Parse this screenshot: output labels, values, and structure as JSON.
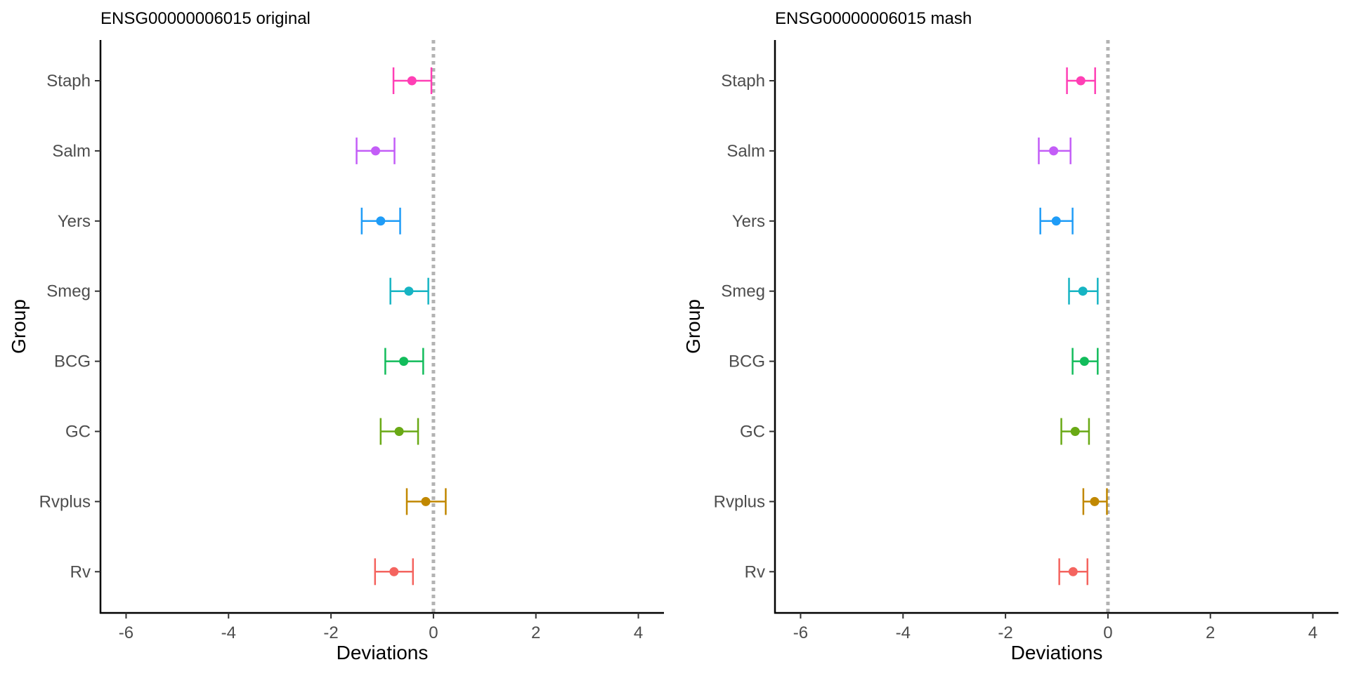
{
  "chart_data": [
    {
      "type": "errorbar",
      "title": "ENSG00000006015 original",
      "xlabel": "Deviations",
      "ylabel": "Group",
      "xlim": [
        -6.5,
        4.5
      ],
      "xticks": [
        -6,
        -4,
        -2,
        0,
        2,
        4
      ],
      "tick_labels": [
        "-6",
        "-4",
        "-2",
        "0",
        "2",
        "4"
      ],
      "reference_line": 0,
      "grid": false,
      "legend": "none",
      "groups": [
        {
          "name": "Staph",
          "color": "#FF3FB5",
          "estimate": -0.42,
          "lower": -0.78,
          "upper": -0.04
        },
        {
          "name": "Salm",
          "color": "#C35DF7",
          "estimate": -1.13,
          "lower": -1.5,
          "upper": -0.76
        },
        {
          "name": "Yers",
          "color": "#1F9CF7",
          "estimate": -1.03,
          "lower": -1.4,
          "upper": -0.65
        },
        {
          "name": "Smeg",
          "color": "#16B4C3",
          "estimate": -0.48,
          "lower": -0.84,
          "upper": -0.1
        },
        {
          "name": "BCG",
          "color": "#12BC5B",
          "estimate": -0.58,
          "lower": -0.94,
          "upper": -0.2
        },
        {
          "name": "GC",
          "color": "#69A915",
          "estimate": -0.67,
          "lower": -1.03,
          "upper": -0.3
        },
        {
          "name": "Rvplus",
          "color": "#C18800",
          "estimate": -0.15,
          "lower": -0.52,
          "upper": 0.24
        },
        {
          "name": "Rv",
          "color": "#F4645F",
          "estimate": -0.77,
          "lower": -1.14,
          "upper": -0.4
        }
      ]
    },
    {
      "type": "errorbar",
      "title": "ENSG00000006015 mash",
      "xlabel": "Deviations",
      "ylabel": "Group",
      "xlim": [
        -6.5,
        4.5
      ],
      "xticks": [
        -6,
        -4,
        -2,
        0,
        2,
        4
      ],
      "tick_labels": [
        "-6",
        "-4",
        "-2",
        "0",
        "2",
        "4"
      ],
      "reference_line": 0,
      "grid": false,
      "legend": "none",
      "groups": [
        {
          "name": "Staph",
          "color": "#FF3FB5",
          "estimate": -0.53,
          "lower": -0.8,
          "upper": -0.25
        },
        {
          "name": "Salm",
          "color": "#C35DF7",
          "estimate": -1.06,
          "lower": -1.35,
          "upper": -0.73
        },
        {
          "name": "Yers",
          "color": "#1F9CF7",
          "estimate": -1.01,
          "lower": -1.32,
          "upper": -0.69
        },
        {
          "name": "Smeg",
          "color": "#16B4C3",
          "estimate": -0.49,
          "lower": -0.76,
          "upper": -0.2
        },
        {
          "name": "BCG",
          "color": "#12BC5B",
          "estimate": -0.46,
          "lower": -0.69,
          "upper": -0.2
        },
        {
          "name": "GC",
          "color": "#69A915",
          "estimate": -0.64,
          "lower": -0.91,
          "upper": -0.37
        },
        {
          "name": "Rvplus",
          "color": "#C18800",
          "estimate": -0.26,
          "lower": -0.48,
          "upper": -0.02
        },
        {
          "name": "Rv",
          "color": "#F4645F",
          "estimate": -0.68,
          "lower": -0.95,
          "upper": -0.4
        }
      ]
    }
  ]
}
